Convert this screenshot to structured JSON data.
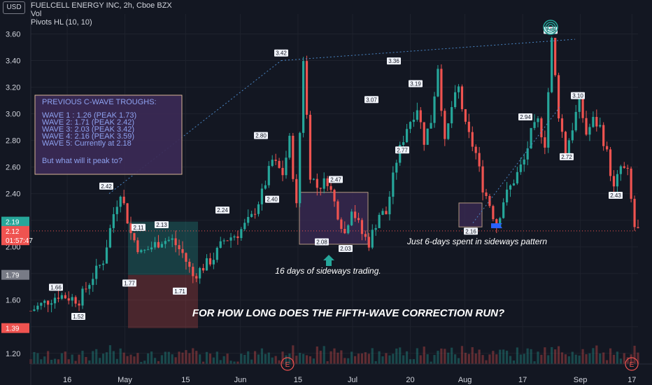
{
  "header": {
    "title": "FUELCELL ENERGY INC, 2h, Cboe BZX",
    "vol": "Vol",
    "indicator": "Pivots HL (10, 10)",
    "currency": "USD"
  },
  "colors": {
    "background": "#131722",
    "up": "#26a69a",
    "down": "#ef5350",
    "grid": "#1e222d",
    "text": "#d1d4dc",
    "annotation_text": "#8ea2f0",
    "box_border": "#e9c2a0",
    "box_fill": "#3b2a55"
  },
  "chart_data": {
    "type": "candlestick",
    "title": "FUELCELL ENERGY INC, 2h, Cboe BZX",
    "y_ticks": [
      1.2,
      1.4,
      1.6,
      1.8,
      2.0,
      2.2,
      2.4,
      2.6,
      2.8,
      3.0,
      3.2,
      3.4,
      3.6
    ],
    "y_tick_labels": [
      "1.20",
      "1.40",
      "1.60",
      "1.80",
      "2.00",
      "2.20",
      "2.40",
      "2.60",
      "2.80",
      "3.00",
      "3.20",
      "3.40",
      "3.60"
    ],
    "ylim": [
      1.12,
      3.75
    ],
    "x_tick_labels": [
      "16",
      "May",
      "15",
      "Jun",
      "15",
      "Jul",
      "20",
      "Aug",
      "17",
      "Sep",
      "17"
    ],
    "price_path": [
      [
        0,
        1.52
      ],
      [
        8,
        1.64
      ],
      [
        14,
        1.6
      ],
      [
        18,
        1.78
      ],
      [
        21,
        1.9
      ],
      [
        24,
        2.25
      ],
      [
        26,
        2.42
      ],
      [
        29,
        2.1
      ],
      [
        32,
        1.95
      ],
      [
        35,
        2.0
      ],
      [
        38,
        2.05
      ],
      [
        41,
        2.05
      ],
      [
        44,
        1.95
      ],
      [
        47,
        1.78
      ],
      [
        50,
        1.85
      ],
      [
        53,
        1.92
      ],
      [
        56,
        2.05
      ],
      [
        60,
        2.1
      ],
      [
        64,
        2.22
      ],
      [
        67,
        2.4
      ],
      [
        70,
        2.65
      ],
      [
        73,
        2.55
      ],
      [
        75,
        2.8
      ],
      [
        77,
        2.3
      ],
      [
        79,
        3.42
      ],
      [
        81,
        2.55
      ],
      [
        83,
        2.45
      ],
      [
        86,
        2.5
      ],
      [
        89,
        2.25
      ],
      [
        91,
        2.1
      ],
      [
        93,
        2.3
      ],
      [
        96,
        2.1
      ],
      [
        98,
        2.03
      ],
      [
        101,
        2.25
      ],
      [
        103,
        2.25
      ],
      [
        106,
        2.65
      ],
      [
        109,
        2.9
      ],
      [
        112,
        3.05
      ],
      [
        114,
        2.8
      ],
      [
        116,
        2.95
      ],
      [
        118,
        3.36
      ],
      [
        120,
        2.77
      ],
      [
        122,
        3.05
      ],
      [
        124,
        3.19
      ],
      [
        126,
        2.9
      ],
      [
        129,
        2.7
      ],
      [
        131,
        2.45
      ],
      [
        133,
        2.32
      ],
      [
        135,
        2.16
      ],
      [
        137,
        2.35
      ],
      [
        139,
        2.45
      ],
      [
        141,
        2.55
      ],
      [
        143,
        2.65
      ],
      [
        145,
        2.85
      ],
      [
        147,
        2.94
      ],
      [
        149,
        2.78
      ],
      [
        151,
        3.55
      ],
      [
        153,
        3.0
      ],
      [
        155,
        2.72
      ],
      [
        157,
        2.9
      ],
      [
        159,
        3.1
      ],
      [
        161,
        2.85
      ],
      [
        163,
        2.95
      ],
      [
        165,
        2.9
      ],
      [
        167,
        2.7
      ],
      [
        169,
        2.43
      ],
      [
        171,
        2.6
      ],
      [
        173,
        2.55
      ],
      [
        175,
        2.15
      ],
      [
        176,
        2.12
      ]
    ],
    "pivot_labels": [
      {
        "label": "1.66",
        "value": 1.66,
        "type": "high"
      },
      {
        "label": "1.52",
        "value": 1.52,
        "type": "low"
      },
      {
        "label": "2.42",
        "value": 2.42,
        "type": "high"
      },
      {
        "label": "2.11",
        "value": 2.11,
        "type": "high"
      },
      {
        "label": "2.13",
        "value": 2.13,
        "type": "high"
      },
      {
        "label": "1.77",
        "value": 1.77,
        "type": "low"
      },
      {
        "label": "1.71",
        "value": 1.71,
        "type": "low"
      },
      {
        "label": "2.24",
        "value": 2.24,
        "type": "high"
      },
      {
        "label": "2.80",
        "value": 2.8,
        "type": "high"
      },
      {
        "label": "2.40",
        "value": 2.4,
        "type": "low"
      },
      {
        "label": "3.42",
        "value": 3.42,
        "type": "high"
      },
      {
        "label": "2.47",
        "value": 2.47,
        "type": "high"
      },
      {
        "label": "2.08",
        "value": 2.08,
        "type": "low"
      },
      {
        "label": "2.03",
        "value": 2.03,
        "type": "low"
      },
      {
        "label": "3.07",
        "value": 3.07,
        "type": "high"
      },
      {
        "label": "3.36",
        "value": 3.36,
        "type": "high"
      },
      {
        "label": "2.77",
        "value": 2.77,
        "type": "low"
      },
      {
        "label": "3.19",
        "value": 3.19,
        "type": "high"
      },
      {
        "label": "2.16",
        "value": 2.16,
        "type": "low"
      },
      {
        "label": "2.94",
        "value": 2.94,
        "type": "high"
      },
      {
        "label": "3.59",
        "value": 3.59,
        "type": "high"
      },
      {
        "label": "2.72",
        "value": 2.72,
        "type": "low"
      },
      {
        "label": "3.10",
        "value": 3.1,
        "type": "high"
      },
      {
        "label": "2.43",
        "value": 2.43,
        "type": "low"
      }
    ],
    "price_badges": [
      {
        "label": "2.19",
        "value": 2.19,
        "color": "#26a69a"
      },
      {
        "label": "2.12",
        "value": 2.12,
        "color": "#ef5350"
      },
      {
        "label": "01:57:47",
        "value": 2.05,
        "color": "#ef5350"
      },
      {
        "label": "1.79",
        "value": 1.79,
        "color": "#787b86"
      },
      {
        "label": "1.39",
        "value": 1.39,
        "color": "#ef5350"
      }
    ],
    "earnings_markers": [
      "E",
      "E"
    ],
    "annotation_box": {
      "lines": [
        "PREVIOUS C-WAVE TROUGHS:",
        "",
        "WAVE 1 : 1.26 (PEAK 1.73)",
        "WAVE 2: 1.71 (PEAK 2.42)",
        "WAVE 3: 2.03 (PEAK 3.42)",
        "WAVE 4: 2.16 (PEAK 3.59)",
        "WAVE 5: Currently at 2.18",
        "",
        "But what will it peak to?"
      ]
    },
    "annotations": [
      "16 days of sideways trading.",
      "Just 6-days spent in sideways pattern",
      "FOR HOW LONG DOES THE FIFTH-WAVE CORRECTION RUN?"
    ],
    "position_box": {
      "top": 2.19,
      "entry": 1.79,
      "bottom": 1.39
    }
  }
}
